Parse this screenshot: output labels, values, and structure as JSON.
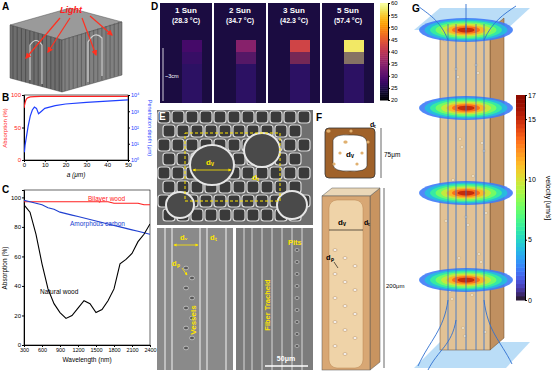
{
  "chart_data": [
    {
      "type": "line",
      "xlabel": "a (μm)",
      "ylabel": "Absorption (%)",
      "x": [
        0,
        0.5,
        1,
        1.5,
        2,
        3,
        5,
        8,
        10,
        15,
        20,
        30,
        40,
        50
      ],
      "values": [
        80,
        88,
        93,
        95,
        96,
        97,
        97.5,
        98,
        98,
        98,
        98,
        98,
        98,
        98
      ],
      "color": "#ff2020",
      "xlim": [
        0,
        50
      ],
      "xticks": [
        0,
        10,
        20,
        30,
        40,
        50
      ],
      "ylim": [
        0,
        100
      ],
      "yticks": [
        0,
        50,
        100
      ]
    },
    {
      "type": "line",
      "ylabel": "Penetration depth (μm)",
      "log": "y",
      "x": [
        0.2,
        0.5,
        1,
        2,
        3,
        4,
        5,
        6,
        7,
        8,
        10,
        15,
        20,
        30,
        40,
        50
      ],
      "values": [
        3,
        8,
        20,
        120,
        500,
        1200,
        1800,
        1500,
        700,
        900,
        1500,
        2200,
        2800,
        3500,
        4200,
        5000
      ],
      "color": "#2040ff",
      "xlim": [
        0,
        50
      ],
      "ylim": [
        1,
        10000
      ],
      "yticks": [
        {
          "value": 1,
          "label": "10⁰"
        },
        {
          "value": 10,
          "label": "10¹"
        },
        {
          "value": 100,
          "label": "10²"
        },
        {
          "value": 1000,
          "label": "10³"
        },
        {
          "value": 10000,
          "label": "10⁴"
        }
      ]
    },
    {
      "type": "line",
      "xlabel": "Wavelength (nm)",
      "ylabel": "Absorption (%)",
      "x": [
        300,
        400,
        500,
        600,
        700,
        800,
        900,
        1000,
        1100,
        1200,
        1300,
        1400,
        1500,
        1600,
        1700,
        1800,
        1900,
        2000,
        2100,
        2200,
        2300,
        2400
      ],
      "series": [
        {
          "name": "Bilayer wood",
          "color": "#ff2020",
          "values": [
            97,
            97,
            97,
            97,
            97,
            97,
            97,
            97,
            97,
            97,
            97,
            97,
            97,
            97,
            97,
            96,
            96,
            96,
            96,
            96,
            95,
            95
          ]
        },
        {
          "name": "Amorphous carbon",
          "color": "#2040d0",
          "values": [
            98,
            97,
            96,
            95,
            93,
            92,
            90,
            89,
            88,
            87,
            86,
            85,
            84,
            83,
            82,
            81,
            80,
            79,
            78,
            77,
            76,
            75
          ]
        },
        {
          "name": "Natural wood",
          "color": "#000000",
          "values": [
            95,
            90,
            75,
            55,
            38,
            28,
            22,
            18,
            20,
            25,
            30,
            28,
            22,
            24,
            30,
            38,
            55,
            58,
            62,
            70,
            75,
            82
          ]
        }
      ],
      "xlim": [
        300,
        2400
      ],
      "xticks": [
        300,
        600,
        900,
        1200,
        1500,
        1800,
        2100,
        2400
      ],
      "ylim": [
        0,
        105
      ],
      "yticks": [
        0,
        20,
        40,
        60,
        80,
        100
      ]
    }
  ],
  "panel_labels": [
    "A",
    "B",
    "C",
    "D",
    "E",
    "F",
    "G"
  ],
  "panel_a": {
    "light": "Light"
  },
  "panel_d": {
    "suns": [
      "1 Sun",
      "2 Sun",
      "3 Sun",
      "5 Sun"
    ],
    "temperatures": [
      28.3,
      34.7,
      42.3,
      57.4
    ],
    "temperature_labels": [
      "(28.3 °C)",
      "(34.7 °C)",
      "(42.3 °C)",
      "(57.4 °C)"
    ],
    "scale": "~3cm",
    "colorbar_range": [
      20,
      60
    ],
    "colorbar_ticks": [
      20,
      25,
      30,
      35,
      40,
      45,
      50,
      55,
      60
    ]
  },
  "panel_e": {
    "top_labels": [
      "dᵥ",
      "dₜ"
    ],
    "bottom_labels": [
      "dᵥ",
      "dₜ",
      "dₚ",
      "Vessels",
      "Fiber Tracheid",
      "Pits"
    ],
    "scale_bar": "50μm"
  },
  "panel_f": {
    "top_labels": [
      "dᵥ",
      "dₜ"
    ],
    "top_size": "75μm",
    "bottom_labels": [
      "dᵥ",
      "dₜ",
      "dₚ"
    ],
    "bottom_size": "200μm"
  },
  "panel_g": {
    "colorbar_title": "velocity [um/s]",
    "colorbar_range": [
      0,
      17
    ],
    "colorbar_ticks": [
      0,
      5,
      10,
      15,
      17
    ]
  }
}
